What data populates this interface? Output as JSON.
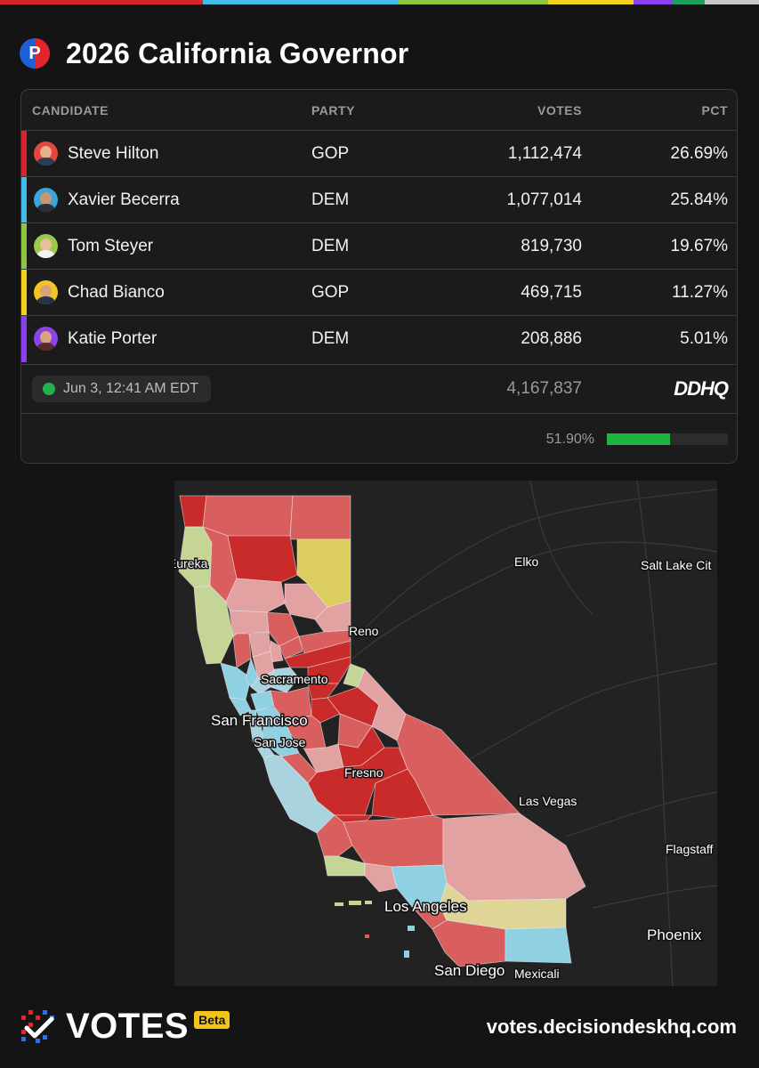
{
  "top_stripe_colors": [
    "#d8232a",
    "#3fbde8",
    "#8dc63f",
    "#f4d11e",
    "#8a3ff0",
    "#1aa05a",
    "#c7c7c7"
  ],
  "header": {
    "logo_letter": "P",
    "title": "2026 California Governor"
  },
  "table": {
    "columns": {
      "candidate": "CANDIDATE",
      "party": "PARTY",
      "votes": "VOTES",
      "pct": "PCT"
    },
    "rows": [
      {
        "name": "Steve Hilton",
        "party": "GOP",
        "votes": "1,112,474",
        "pct": "26.69%",
        "color": "#d8232a"
      },
      {
        "name": "Xavier Becerra",
        "party": "DEM",
        "votes": "1,077,014",
        "pct": "25.84%",
        "color": "#3fbde8"
      },
      {
        "name": "Tom Steyer",
        "party": "DEM",
        "votes": "819,730",
        "pct": "19.67%",
        "color": "#8dc63f"
      },
      {
        "name": "Chad Bianco",
        "party": "GOP",
        "votes": "469,715",
        "pct": "11.27%",
        "color": "#f4d11e"
      },
      {
        "name": "Katie Porter",
        "party": "DEM",
        "votes": "208,886",
        "pct": "5.01%",
        "color": "#8a3ff0"
      }
    ],
    "updated": "Jun 3, 12:41 AM EDT",
    "total_votes": "4,167,837",
    "source_logo": "DDHQ",
    "reporting_label": "51.90%",
    "reporting_fraction": 0.519
  },
  "map": {
    "labels": [
      "Eureka",
      "Elko",
      "Salt Lake Cit",
      "Reno",
      "Sacramento",
      "San Francisco",
      "San Jose",
      "Fresno",
      "Las Vegas",
      "Flagstaff",
      "Los Angeles",
      "Phoenix",
      "San Diego",
      "Mexicali"
    ],
    "legend_colors": {
      "hilton_strong": "#c92a2a",
      "hilton_mid": "#d95e5e",
      "hilton_light": "#e2a2a2",
      "becerra": "#8fd0e2",
      "becerra_light": "#a9d4df",
      "steyer": "#c5d596",
      "bianco": "#dcce5e",
      "bianco_light": "#dfd596"
    }
  },
  "footer": {
    "brand": "VOTES",
    "badge": "Beta",
    "site": "votes.decisiondeskhq.com"
  }
}
